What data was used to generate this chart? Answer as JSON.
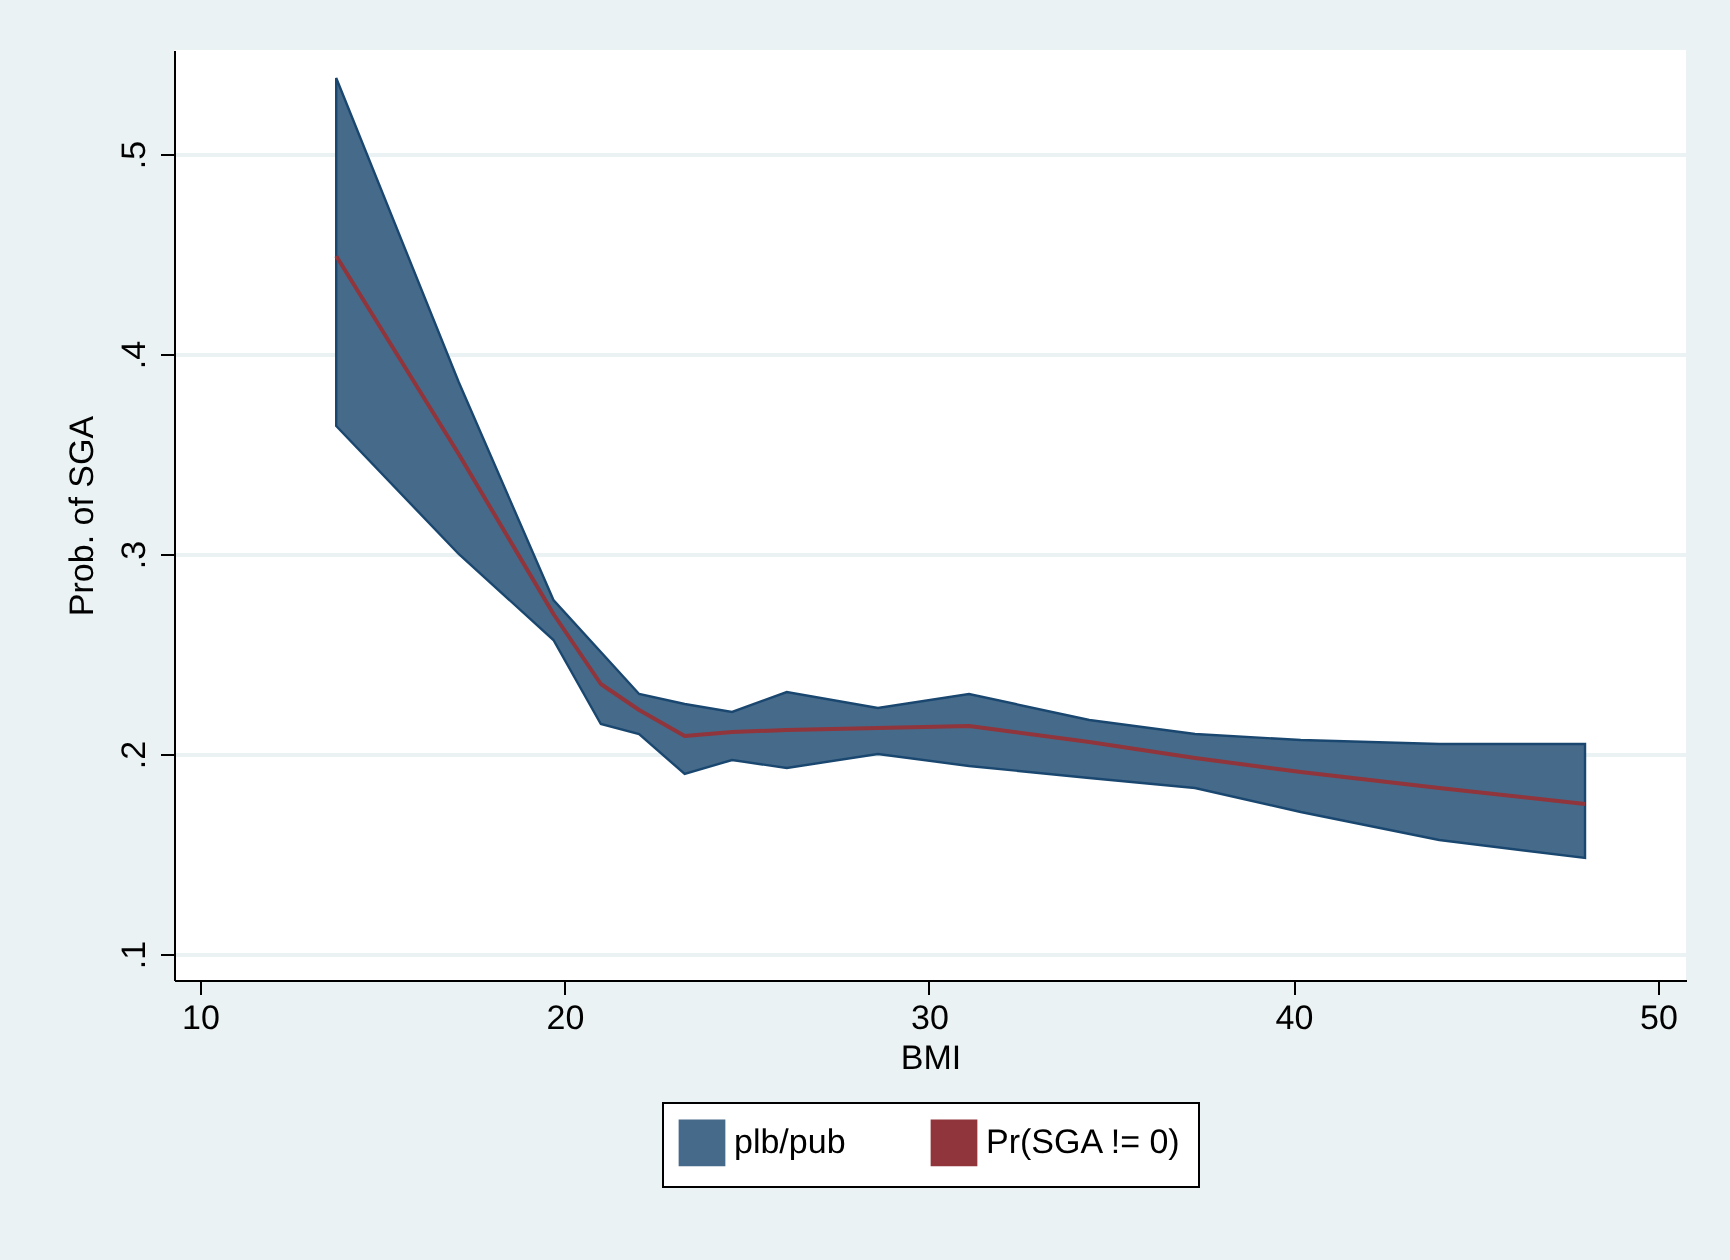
{
  "chart_data": {
    "type": "line",
    "xlabel": "BMI",
    "ylabel": "Prob. of SGA",
    "xlim": [
      9.29,
      50.77
    ],
    "ylim": [
      0.087,
      0.552
    ],
    "xticks": [
      10,
      20,
      30,
      40,
      50
    ],
    "yticks": [
      {
        "value": 0.1,
        "label": ".1"
      },
      {
        "value": 0.2,
        "label": ".2"
      },
      {
        "value": 0.3,
        "label": ".3"
      },
      {
        "value": 0.4,
        "label": ".4"
      },
      {
        "value": 0.5,
        "label": ".5"
      }
    ],
    "grid": "y",
    "legend": "bottom",
    "annotations": [
      "plb/pub"
    ],
    "series": [
      {
        "name": "Pr(SGA != 0)",
        "type": "line",
        "color": "#90353b",
        "x": [
          13.74,
          17.1,
          19.7,
          21.0,
          22.05,
          23.3,
          24.6,
          26.1,
          28.6,
          31.1,
          34.4,
          37.3,
          40.2,
          44.0,
          48.0
        ],
        "values": [
          0.449,
          0.35,
          0.27,
          0.235,
          0.222,
          0.209,
          0.211,
          0.212,
          0.213,
          0.214,
          0.206,
          0.198,
          0.191,
          0.183,
          0.175
        ],
        "lower": [
          0.364,
          0.3,
          0.257,
          0.215,
          0.21,
          0.19,
          0.197,
          0.193,
          0.2,
          0.194,
          0.188,
          0.183,
          0.171,
          0.157,
          0.148
        ],
        "upper": [
          0.538,
          0.386,
          0.277,
          0.251,
          0.23,
          0.225,
          0.221,
          0.231,
          0.223,
          0.23,
          0.217,
          0.21,
          0.207,
          0.205,
          0.205
        ]
      }
    ]
  }
}
